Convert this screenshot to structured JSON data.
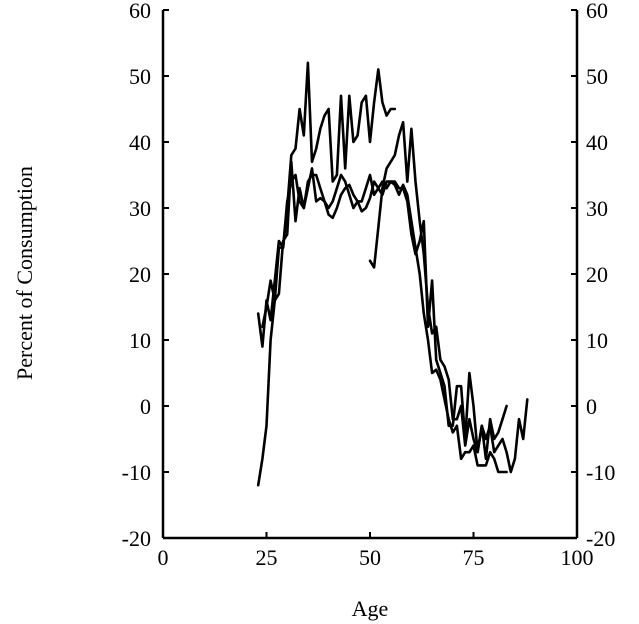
{
  "chart_data": {
    "type": "line",
    "title": "",
    "xlabel": "Age",
    "ylabel": "Percent of Consumption",
    "xlim": [
      0,
      100
    ],
    "ylim": [
      -20,
      60
    ],
    "x_ticks": [
      0,
      25,
      50,
      75,
      100
    ],
    "y_ticks": [
      -20,
      -10,
      0,
      10,
      20,
      30,
      40,
      50,
      60
    ],
    "right_axis_ticks": [
      -20,
      -10,
      0,
      10,
      20,
      30,
      40,
      50,
      60
    ],
    "grid": false,
    "legend": "none",
    "series": [
      {
        "x": [
          23,
          24,
          25,
          26,
          27,
          28,
          29,
          30,
          31,
          32,
          33,
          34,
          35,
          36,
          37,
          38,
          39,
          40,
          41,
          42,
          43,
          44,
          45,
          46,
          47,
          48,
          49,
          50,
          51,
          52,
          53,
          54,
          55,
          56,
          57,
          58,
          59,
          60,
          61,
          62,
          63,
          64,
          65,
          66,
          67,
          68,
          69,
          70,
          71,
          72,
          73,
          74,
          75,
          76,
          77,
          78,
          79,
          80,
          81,
          82,
          83
        ],
        "values": [
          -12,
          -8,
          -3,
          10,
          16,
          24,
          24,
          31,
          34,
          35,
          31,
          30,
          33,
          36,
          31,
          31.5,
          31,
          29,
          28.5,
          30,
          32,
          33,
          33.5,
          32,
          31,
          29.5,
          30,
          31.5,
          34,
          33,
          34,
          33,
          34,
          33.5,
          32,
          33.5,
          32,
          28,
          24,
          20,
          14,
          10,
          5,
          5.5,
          4,
          1,
          -2,
          -4,
          -3,
          -8,
          -7,
          -7,
          -6,
          -9,
          -9,
          -9,
          -7,
          -8,
          -10,
          -10,
          -10
        ]
      },
      {
        "x": [
          23,
          24,
          25,
          26,
          27,
          28,
          29,
          30,
          31,
          32,
          33,
          34,
          35,
          36,
          37,
          38,
          39,
          40,
          41,
          42,
          43,
          44,
          45,
          46,
          47,
          48,
          49,
          50,
          51,
          52,
          53,
          54,
          55,
          56
        ],
        "values": [
          14,
          9,
          16,
          13,
          19,
          25,
          24,
          30,
          38,
          39,
          45,
          41,
          52,
          37,
          39,
          42,
          44,
          45,
          34,
          35,
          47,
          36,
          47,
          40,
          41,
          46,
          47,
          40,
          46,
          51,
          46,
          44,
          45,
          45
        ]
      },
      {
        "x": [
          50,
          51,
          52,
          53,
          54,
          55,
          56,
          57,
          58,
          59,
          60,
          61,
          62,
          63,
          64,
          65,
          66,
          67,
          68,
          69,
          70,
          71,
          72,
          73,
          74,
          75,
          76,
          77,
          78,
          79,
          80,
          81,
          82,
          83,
          84,
          85,
          86,
          87,
          88
        ],
        "values": [
          22,
          21,
          27,
          33,
          36,
          37,
          38,
          41,
          43,
          34,
          42,
          34,
          28,
          23,
          15,
          11,
          12,
          7,
          6,
          4,
          -2,
          -2,
          0,
          -6,
          -2,
          -5,
          -7,
          -3,
          -5,
          -3,
          -7,
          -6,
          -5,
          -7,
          -10,
          -8,
          -2,
          -5,
          1
        ]
      },
      {
        "x": [
          24,
          25,
          26,
          27,
          28,
          29,
          30,
          31,
          32,
          33,
          34,
          35,
          36,
          37,
          38,
          39,
          40,
          41,
          42,
          43,
          44,
          45,
          46,
          47,
          48,
          49,
          50,
          51,
          52,
          53,
          54,
          55,
          56,
          57,
          58,
          59,
          60,
          61,
          62,
          63,
          64,
          65,
          66,
          67,
          68,
          69,
          70,
          71,
          72,
          73,
          74,
          75,
          76,
          77,
          78,
          79,
          80,
          81,
          82,
          83
        ],
        "values": [
          12,
          15,
          19,
          16,
          17,
          25,
          26,
          37,
          28,
          33,
          30,
          34,
          35,
          35,
          33,
          31,
          30,
          31,
          33,
          35,
          34,
          32,
          30,
          31,
          31,
          33,
          35,
          32,
          33,
          32,
          34,
          34,
          34,
          33,
          33,
          31,
          26,
          23,
          25,
          28,
          12,
          19,
          7,
          5,
          3,
          -3,
          -3,
          3,
          3,
          -5,
          5,
          0,
          -7,
          -3,
          -8,
          -2,
          -5,
          -4,
          -2,
          0
        ]
      }
    ]
  }
}
